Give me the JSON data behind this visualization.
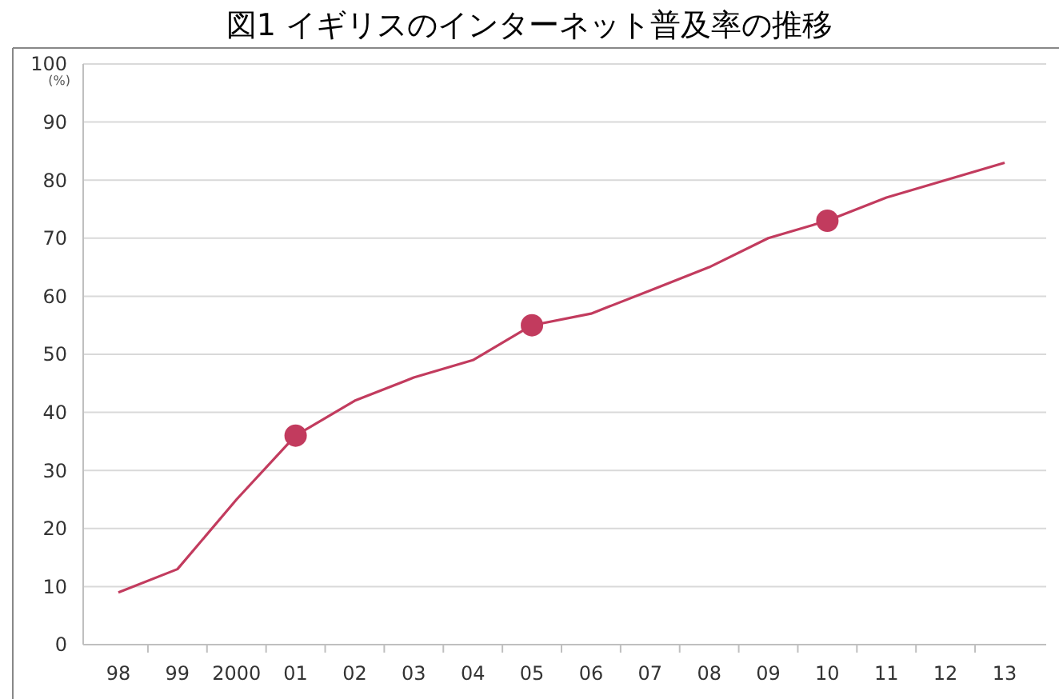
{
  "chart_data": {
    "type": "line",
    "title": "図1 イギリスのインターネット普及率の推移",
    "ylabel": "(%)",
    "categories": [
      "98",
      "99",
      "2000",
      "01",
      "02",
      "03",
      "04",
      "05",
      "06",
      "07",
      "08",
      "09",
      "10",
      "11",
      "12",
      "13"
    ],
    "series": [
      {
        "color": "#c23b5e",
        "values": [
          9,
          13,
          25,
          36,
          42,
          46,
          49,
          55,
          57,
          61,
          65,
          70,
          73,
          77,
          80,
          83
        ],
        "marker": "none"
      },
      {
        "type": "scatter",
        "color": "#c23b5e",
        "x": [
          "01",
          "05",
          "10"
        ],
        "values": [
          36,
          55,
          73
        ],
        "marker": "circle"
      }
    ],
    "ylim": [
      0,
      100
    ],
    "yticks": [
      0,
      10,
      20,
      30,
      40,
      50,
      60,
      70,
      80,
      90,
      100
    ],
    "grid": "y"
  }
}
